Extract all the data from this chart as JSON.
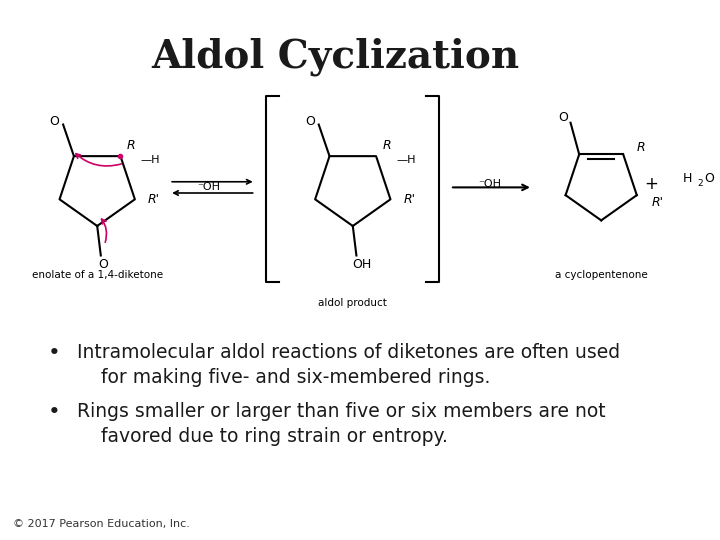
{
  "title": "Aldol Cyclization",
  "title_fontsize": 28,
  "title_fontweight": "bold",
  "title_color": "#1a1a1a",
  "background_color": "#ffffff",
  "bullet_points": [
    "Intramolecular aldol reactions of diketones are often used\n    for making five- and six-membered rings.",
    "Rings smaller or larger than five or six members are not\n    favored due to ring strain or entropy."
  ],
  "bullet_fontsize": 13.5,
  "bullet_color": "#1a1a1a",
  "copyright": "© 2017 Pearson Education, Inc.",
  "copyright_fontsize": 8,
  "copyright_color": "#333333",
  "reaction_image_path": null,
  "figsize": [
    7.2,
    5.4
  ],
  "dpi": 100
}
